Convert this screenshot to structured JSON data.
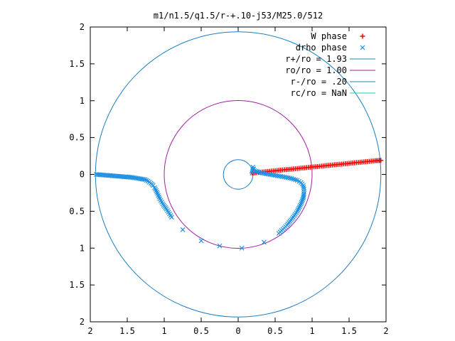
{
  "chart_data": {
    "type": "scatter",
    "title": "m1/n1.5/q1.5/r-+.10-j53/M25.0/512",
    "xlabel": "",
    "ylabel": "",
    "xlim": [
      -2,
      2
    ],
    "ylim": [
      -2,
      2
    ],
    "x_ticks": [
      {
        "value": -2,
        "label": "2"
      },
      {
        "value": -1.5,
        "label": "1.5"
      },
      {
        "value": -1,
        "label": "1"
      },
      {
        "value": -0.5,
        "label": "0.5"
      },
      {
        "value": 0,
        "label": "0"
      },
      {
        "value": 0.5,
        "label": "0.5"
      },
      {
        "value": 1,
        "label": "1"
      },
      {
        "value": 1.5,
        "label": "1.5"
      },
      {
        "value": 2,
        "label": "2"
      }
    ],
    "y_ticks": [
      {
        "value": 2,
        "label": "2"
      },
      {
        "value": 1.5,
        "label": "1.5"
      },
      {
        "value": 1,
        "label": "1"
      },
      {
        "value": 0.5,
        "label": "0.5"
      },
      {
        "value": 0,
        "label": "0"
      },
      {
        "value": -0.5,
        "label": "0.5"
      },
      {
        "value": -1,
        "label": "1"
      },
      {
        "value": -1.5,
        "label": "1.5"
      },
      {
        "value": -2,
        "label": "2"
      }
    ],
    "grid": false,
    "legend_position": "top-right",
    "series": [
      {
        "name": "W phase",
        "marker": "plus",
        "color": "#ff0000",
        "points": [
          [
            0.19,
            0.02
          ],
          [
            0.25,
            0.025
          ],
          [
            0.3,
            0.03
          ],
          [
            0.35,
            0.035
          ],
          [
            0.4,
            0.04
          ],
          [
            0.45,
            0.045
          ],
          [
            0.5,
            0.05
          ],
          [
            0.55,
            0.055
          ],
          [
            0.6,
            0.06
          ],
          [
            0.65,
            0.065
          ],
          [
            0.7,
            0.07
          ],
          [
            0.75,
            0.075
          ],
          [
            0.8,
            0.08
          ],
          [
            0.85,
            0.085
          ],
          [
            0.9,
            0.09
          ],
          [
            0.95,
            0.095
          ],
          [
            1.0,
            0.1
          ],
          [
            1.05,
            0.105
          ],
          [
            1.1,
            0.11
          ],
          [
            1.15,
            0.115
          ],
          [
            1.2,
            0.12
          ],
          [
            1.25,
            0.125
          ],
          [
            1.3,
            0.13
          ],
          [
            1.35,
            0.135
          ],
          [
            1.4,
            0.14
          ],
          [
            1.45,
            0.145
          ],
          [
            1.5,
            0.15
          ],
          [
            1.55,
            0.155
          ],
          [
            1.6,
            0.16
          ],
          [
            1.65,
            0.165
          ],
          [
            1.7,
            0.17
          ],
          [
            1.75,
            0.175
          ],
          [
            1.8,
            0.18
          ],
          [
            1.85,
            0.185
          ],
          [
            1.93,
            0.19
          ]
        ]
      },
      {
        "name": "drho phase",
        "marker": "cross",
        "color": "#1f8fe0",
        "points": [
          [
            -1.92,
            0.0
          ],
          [
            -1.86,
            -0.005
          ],
          [
            -1.8,
            -0.01
          ],
          [
            -1.74,
            -0.015
          ],
          [
            -1.68,
            -0.02
          ],
          [
            -1.62,
            -0.025
          ],
          [
            -1.56,
            -0.03
          ],
          [
            -1.5,
            -0.035
          ],
          [
            -1.44,
            -0.04
          ],
          [
            -1.38,
            -0.05
          ],
          [
            -1.32,
            -0.06
          ],
          [
            -1.26,
            -0.07
          ],
          [
            -1.22,
            -0.09
          ],
          [
            -1.18,
            -0.12
          ],
          [
            -1.15,
            -0.15
          ],
          [
            -1.13,
            -0.18
          ],
          [
            -1.11,
            -0.22
          ],
          [
            -1.09,
            -0.26
          ],
          [
            -1.06,
            -0.33
          ],
          [
            -1.02,
            -0.4
          ],
          [
            -0.97,
            -0.47
          ],
          [
            -0.9,
            -0.58
          ],
          [
            -0.75,
            -0.75
          ],
          [
            -0.5,
            -0.9
          ],
          [
            -0.25,
            -0.97
          ],
          [
            0.05,
            -1.0
          ],
          [
            0.35,
            -0.92
          ],
          [
            0.55,
            -0.8
          ],
          [
            0.66,
            -0.69
          ],
          [
            0.73,
            -0.6
          ],
          [
            0.8,
            -0.5
          ],
          [
            0.85,
            -0.4
          ],
          [
            0.88,
            -0.32
          ],
          [
            0.89,
            -0.26
          ],
          [
            0.89,
            -0.2
          ],
          [
            0.88,
            -0.15
          ],
          [
            0.85,
            -0.11
          ],
          [
            0.8,
            -0.08
          ],
          [
            0.7,
            -0.05
          ],
          [
            0.6,
            -0.03
          ],
          [
            0.48,
            -0.01
          ],
          [
            0.36,
            0.01
          ],
          [
            0.28,
            0.03
          ],
          [
            0.22,
            0.05
          ],
          [
            0.2,
            0.1
          ],
          [
            0.19,
            0.02
          ]
        ]
      }
    ],
    "circles": [
      {
        "name": "r+/ro = 1.93",
        "radius": 1.93,
        "color": "#1a7fc2"
      },
      {
        "name": "ro/ro = 1.00",
        "radius": 1.0,
        "color": "#a020a0"
      },
      {
        "name": "r-/ro =  .20",
        "radius": 0.2,
        "color": "#1a7fc2"
      },
      {
        "name": "rc/ro = NaN",
        "radius": null,
        "color": "#2ac4c4"
      }
    ]
  }
}
